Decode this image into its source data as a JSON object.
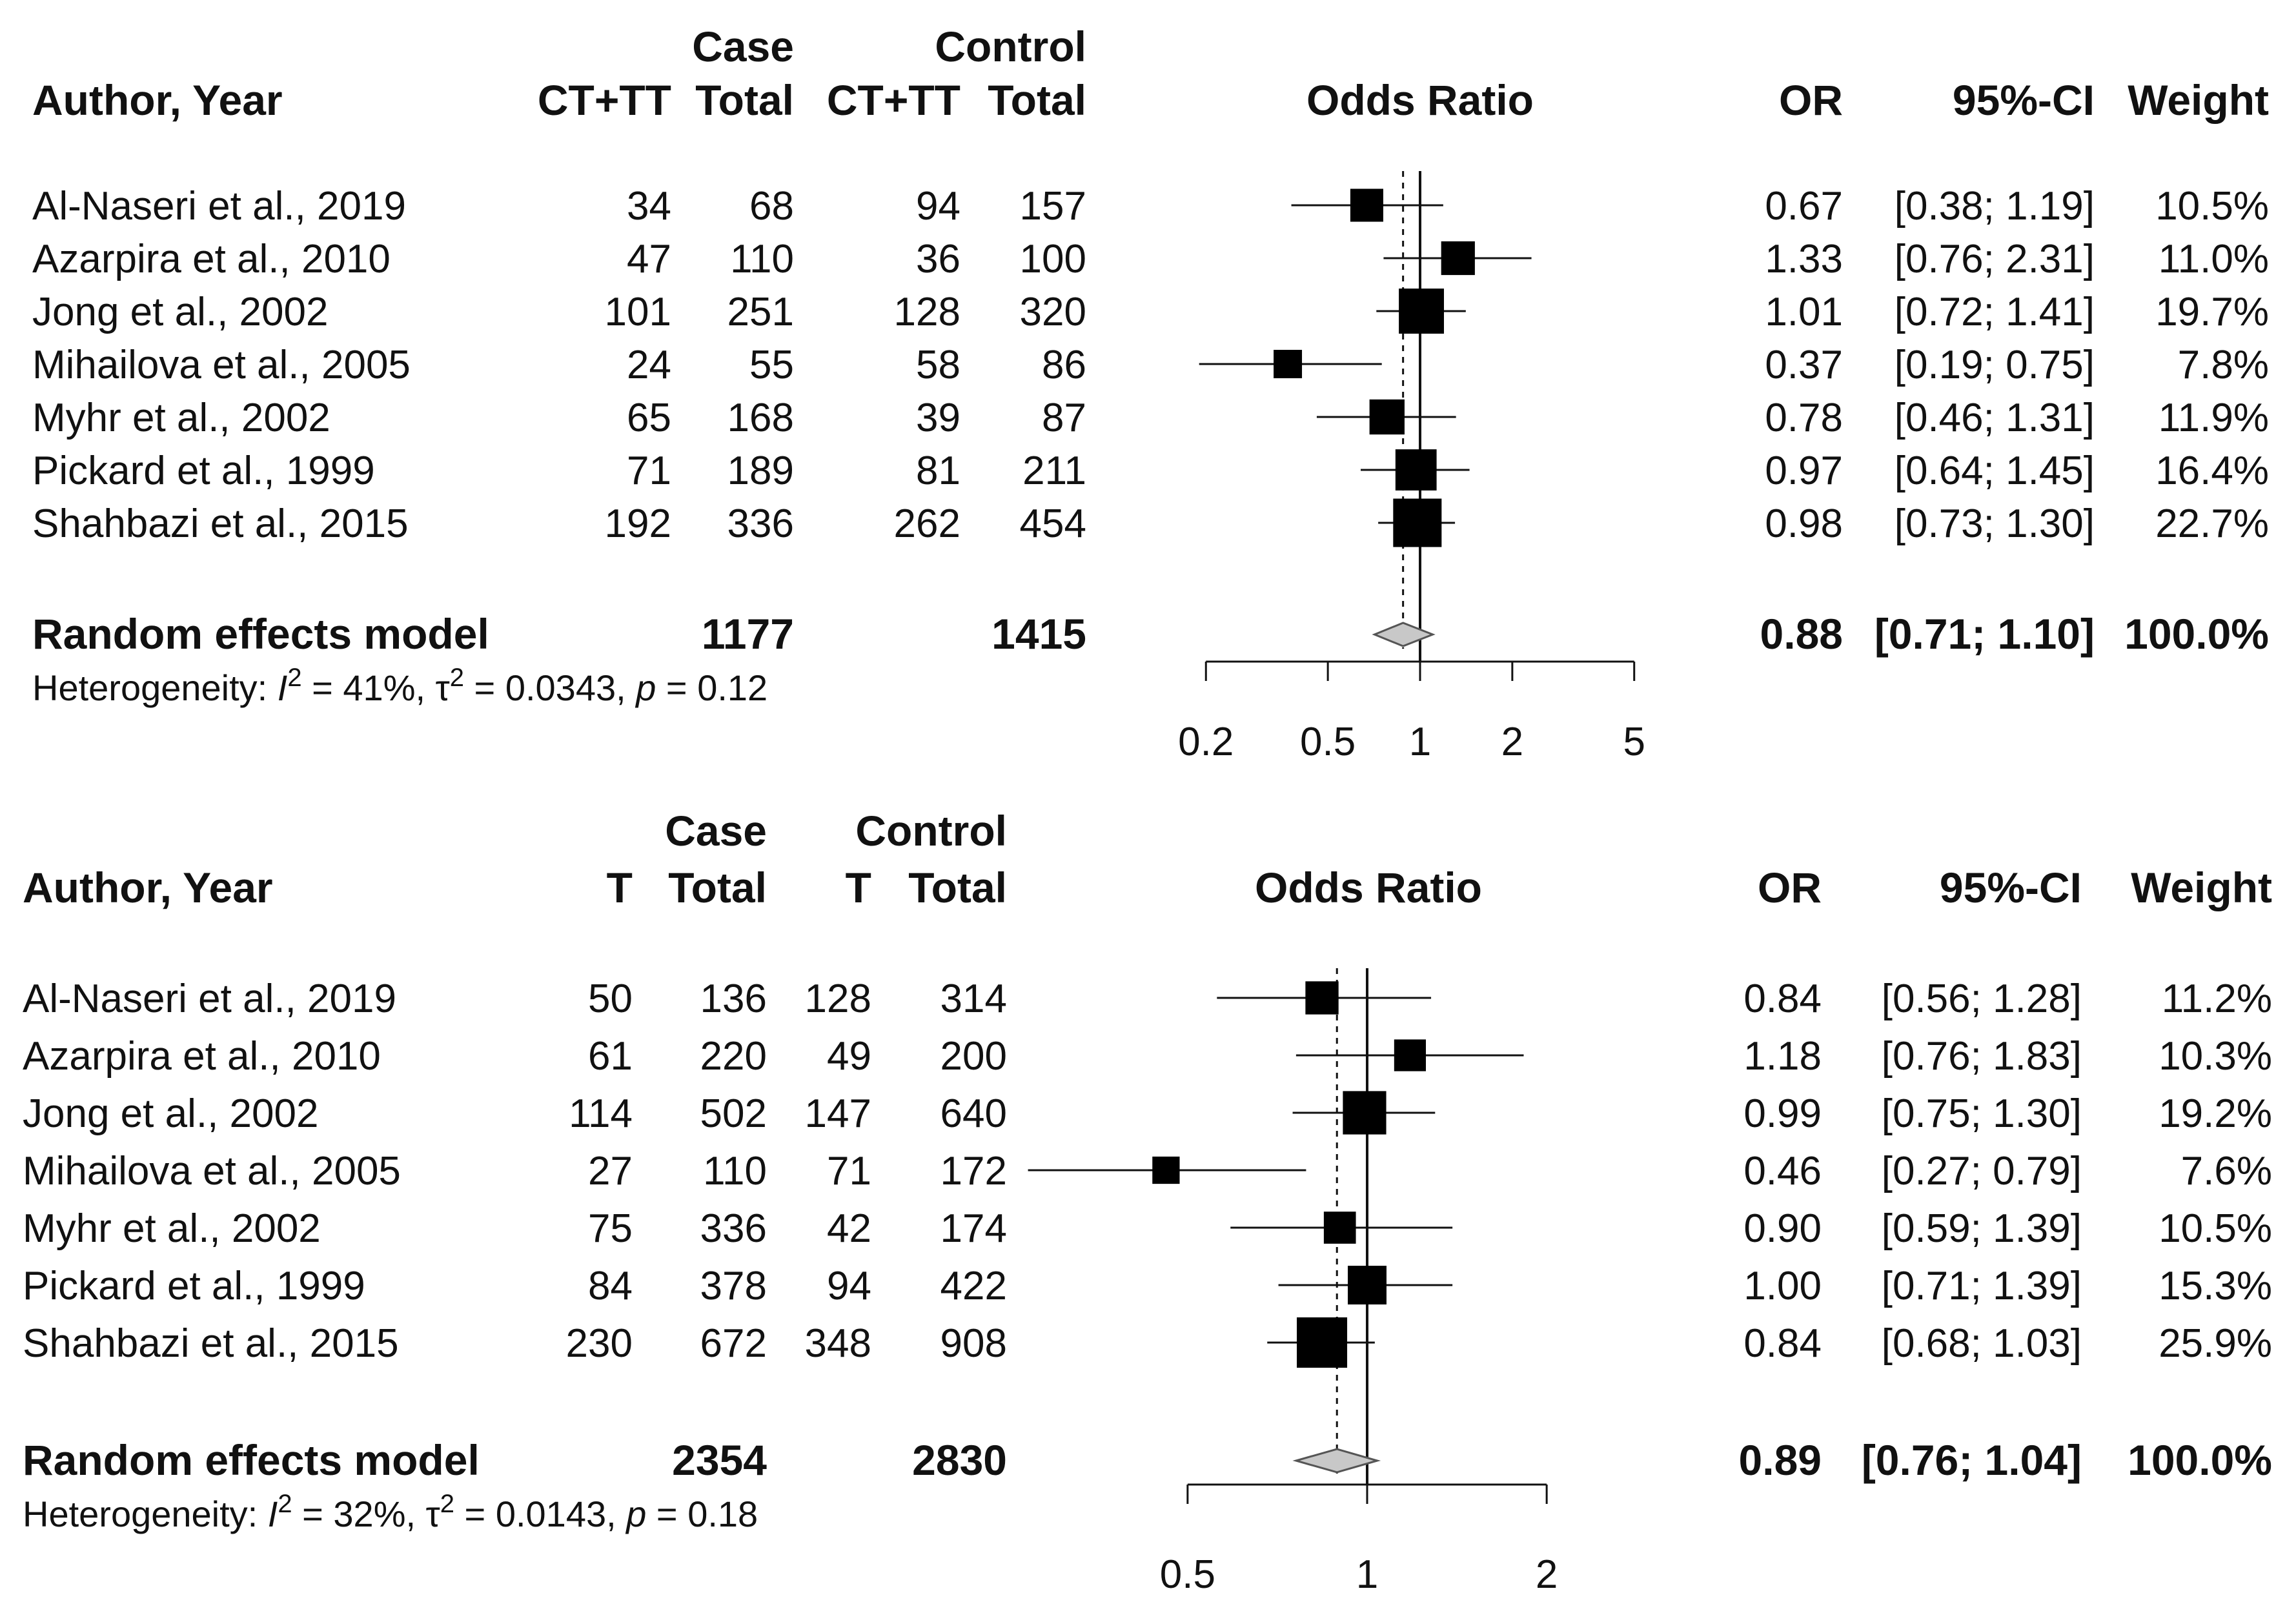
{
  "chart_data": [
    {
      "type": "forest",
      "headers": {
        "study": "Author, Year",
        "case_group": "Case",
        "control_group": "Control",
        "events": "CT+TT",
        "total": "Total",
        "plot_title": "Odds Ratio",
        "or": "OR",
        "ci": "95%-CI",
        "weight": "Weight"
      },
      "rows": [
        {
          "study": "Al-Naseri et al., 2019",
          "case_events": "34",
          "case_total": "68",
          "control_events": "94",
          "control_total": "157",
          "or": 0.67,
          "lower": 0.38,
          "upper": 1.19,
          "or_text": "0.67",
          "ci_text": "[0.38; 1.19]",
          "weight_text": "10.5%",
          "weight": 10.5
        },
        {
          "study": "Azarpira et al., 2010",
          "case_events": "47",
          "case_total": "110",
          "control_events": "36",
          "control_total": "100",
          "or": 1.33,
          "lower": 0.76,
          "upper": 2.31,
          "or_text": "1.33",
          "ci_text": "[0.76; 2.31]",
          "weight_text": "11.0%",
          "weight": 11.0
        },
        {
          "study": "Jong et al., 2002",
          "case_events": "101",
          "case_total": "251",
          "control_events": "128",
          "control_total": "320",
          "or": 1.01,
          "lower": 0.72,
          "upper": 1.41,
          "or_text": "1.01",
          "ci_text": "[0.72; 1.41]",
          "weight_text": "19.7%",
          "weight": 19.7
        },
        {
          "study": "Mihailova et al., 2005",
          "case_events": "24",
          "case_total": "55",
          "control_events": "58",
          "control_total": "86",
          "or": 0.37,
          "lower": 0.19,
          "upper": 0.75,
          "or_text": "0.37",
          "ci_text": "[0.19; 0.75]",
          "weight_text": "7.8%",
          "weight": 7.8
        },
        {
          "study": "Myhr et al., 2002",
          "case_events": "65",
          "case_total": "168",
          "control_events": "39",
          "control_total": "87",
          "or": 0.78,
          "lower": 0.46,
          "upper": 1.31,
          "or_text": "0.78",
          "ci_text": "[0.46; 1.31]",
          "weight_text": "11.9%",
          "weight": 11.9
        },
        {
          "study": "Pickard et al., 1999",
          "case_events": "71",
          "case_total": "189",
          "control_events": "81",
          "control_total": "211",
          "or": 0.97,
          "lower": 0.64,
          "upper": 1.45,
          "or_text": "0.97",
          "ci_text": "[0.64; 1.45]",
          "weight_text": "16.4%",
          "weight": 16.4
        },
        {
          "study": "Shahbazi et al., 2015",
          "case_events": "192",
          "case_total": "336",
          "control_events": "262",
          "control_total": "454",
          "or": 0.98,
          "lower": 0.73,
          "upper": 1.3,
          "or_text": "0.98",
          "ci_text": "[0.73; 1.30]",
          "weight_text": "22.7%",
          "weight": 22.7
        }
      ],
      "summary": {
        "label": "Random effects model",
        "case_total": "1177",
        "control_total": "1415",
        "or": 0.88,
        "lower": 0.71,
        "upper": 1.1,
        "or_text": "0.88",
        "ci_text": "[0.71; 1.10]",
        "weight_text": "100.0%"
      },
      "heterogeneity": {
        "prefix": "Heterogeneity: ",
        "i2_symbol": "I",
        "sq": "2",
        "i2_value": " = 41%, ",
        "tau_symbol": "τ",
        "tau_value": " = 0.0343, ",
        "p_symbol": "p",
        "p_value": " = 0.12"
      },
      "x_axis": {
        "scale": "log",
        "ticks": [
          0.2,
          0.5,
          1,
          2,
          5
        ],
        "tick_labels": [
          "0.2",
          "0.5",
          "1",
          "2",
          "5"
        ],
        "range": [
          0.2,
          5
        ]
      },
      "reference_line": 1
    },
    {
      "type": "forest",
      "headers": {
        "study": "Author, Year",
        "case_group": "Case",
        "control_group": "Control",
        "events": "T",
        "total": "Total",
        "plot_title": "Odds Ratio",
        "or": "OR",
        "ci": "95%-CI",
        "weight": "Weight"
      },
      "rows": [
        {
          "study": "Al-Naseri et al., 2019",
          "case_events": "50",
          "case_total": "136",
          "control_events": "128",
          "control_total": "314",
          "or": 0.84,
          "lower": 0.56,
          "upper": 1.28,
          "or_text": "0.84",
          "ci_text": "[0.56; 1.28]",
          "weight_text": "11.2%",
          "weight": 11.2
        },
        {
          "study": "Azarpira et al., 2010",
          "case_events": "61",
          "case_total": "220",
          "control_events": "49",
          "control_total": "200",
          "or": 1.18,
          "lower": 0.76,
          "upper": 1.83,
          "or_text": "1.18",
          "ci_text": "[0.76; 1.83]",
          "weight_text": "10.3%",
          "weight": 10.3
        },
        {
          "study": "Jong et al., 2002",
          "case_events": "114",
          "case_total": "502",
          "control_events": "147",
          "control_total": "640",
          "or": 0.99,
          "lower": 0.75,
          "upper": 1.3,
          "or_text": "0.99",
          "ci_text": "[0.75; 1.30]",
          "weight_text": "19.2%",
          "weight": 19.2
        },
        {
          "study": "Mihailova et al., 2005",
          "case_events": "27",
          "case_total": "110",
          "control_events": "71",
          "control_total": "172",
          "or": 0.46,
          "lower": 0.27,
          "upper": 0.79,
          "or_text": "0.46",
          "ci_text": "[0.27; 0.79]",
          "weight_text": "7.6%",
          "weight": 7.6
        },
        {
          "study": "Myhr et al., 2002",
          "case_events": "75",
          "case_total": "336",
          "control_events": "42",
          "control_total": "174",
          "or": 0.9,
          "lower": 0.59,
          "upper": 1.39,
          "or_text": "0.90",
          "ci_text": "[0.59; 1.39]",
          "weight_text": "10.5%",
          "weight": 10.5
        },
        {
          "study": "Pickard et al., 1999",
          "case_events": "84",
          "case_total": "378",
          "control_events": "94",
          "control_total": "422",
          "or": 1.0,
          "lower": 0.71,
          "upper": 1.39,
          "or_text": "1.00",
          "ci_text": "[0.71; 1.39]",
          "weight_text": "15.3%",
          "weight": 15.3
        },
        {
          "study": "Shahbazi et al., 2015",
          "case_events": "230",
          "case_total": "672",
          "control_events": "348",
          "control_total": "908",
          "or": 0.84,
          "lower": 0.68,
          "upper": 1.03,
          "or_text": "0.84",
          "ci_text": "[0.68; 1.03]",
          "weight_text": "25.9%",
          "weight": 25.9
        }
      ],
      "summary": {
        "label": "Random effects model",
        "case_total": "2354",
        "control_total": "2830",
        "or": 0.89,
        "lower": 0.76,
        "upper": 1.04,
        "or_text": "0.89",
        "ci_text": "[0.76; 1.04]",
        "weight_text": "100.0%"
      },
      "heterogeneity": {
        "prefix": "Heterogeneity: ",
        "i2_symbol": "I",
        "sq": "2",
        "i2_value": " = 32%, ",
        "tau_symbol": "τ",
        "tau_value": " = 0.0143, ",
        "p_symbol": "p",
        "p_value": " = 0.18"
      },
      "x_axis": {
        "scale": "log",
        "ticks": [
          0.5,
          1,
          2
        ],
        "tick_labels": [
          "0.5",
          "1",
          "2"
        ],
        "range": [
          0.5,
          2
        ]
      },
      "reference_line": 1
    }
  ],
  "colors": {
    "ink": "#111111",
    "diamond_fill": "#c8c8c8",
    "diamond_stroke": "#555555"
  }
}
